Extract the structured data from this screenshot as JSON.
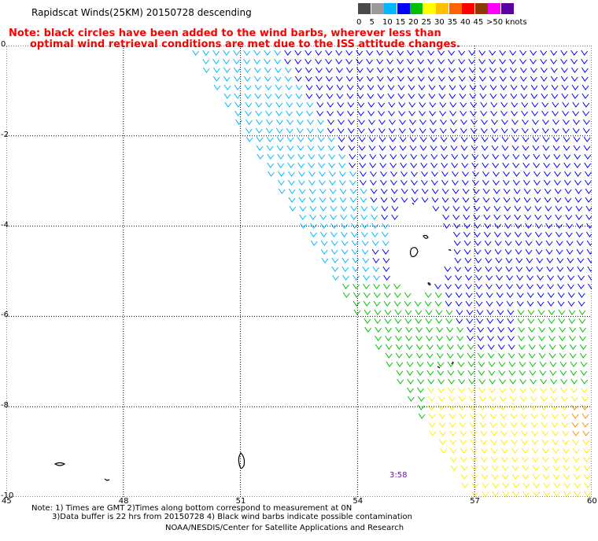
{
  "header": {
    "title": "Rapidscat Winds(25KM) 20150728 descending",
    "note_line1": "Note: black circles have been added to the wind barbs, wherever less than",
    "note_line2": "optimal wind retrieval conditions are met due to the ISS attitude changes."
  },
  "legend": {
    "items": [
      {
        "label": "0",
        "color": "#4a4a4a"
      },
      {
        "label": "5",
        "color": "#9a9a9a"
      },
      {
        "label": "10",
        "color": "#00b8ff"
      },
      {
        "label": "15",
        "color": "#0000ff"
      },
      {
        "label": "20",
        "color": "#00c000"
      },
      {
        "label": "25",
        "color": "#ffff00"
      },
      {
        "label": "30",
        "color": "#ffc000"
      },
      {
        "label": "35",
        "color": "#ff6000"
      },
      {
        "label": "40",
        "color": "#ff0000"
      },
      {
        "label": "45",
        "color": "#8b3a00"
      },
      {
        "label": ">50 knots",
        "color": "#ff00ff"
      },
      {
        "label": "",
        "color": "#5a00a0"
      }
    ]
  },
  "map": {
    "lat_labels": [
      "0",
      "-2",
      "-4",
      "-6",
      "-8",
      "-10"
    ],
    "lon_labels": [
      "45",
      "48",
      "51",
      "54",
      "57",
      "60"
    ],
    "time_label": "3:58",
    "colors": {
      "grid": "#000000",
      "land": "#000000",
      "light_blue": "#00b8ff",
      "blue": "#0000ff",
      "green": "#00c000",
      "yellow": "#ffee00",
      "orange": "#ff9000"
    }
  },
  "footer": {
    "line1": "Note: 1) Times are GMT 2)Times along bottom correspond to measurement at 0N",
    "line2": "3)Data buffer is 22 hrs from 20150728 4) Black wind barbs indicate possible contamination",
    "line3": "NOAA/NESDIS/Center for Satellite Applications and Research"
  }
}
